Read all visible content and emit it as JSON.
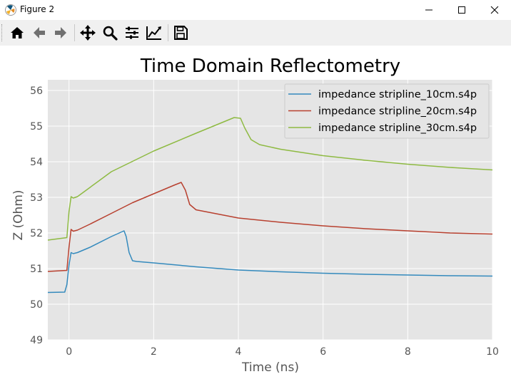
{
  "window": {
    "title": "Figure 2"
  },
  "toolbar": {
    "tools": [
      "home-icon",
      "back-arrow-icon",
      "forward-arrow-icon",
      "pan-icon",
      "zoom-icon",
      "subplots-icon",
      "axes-edit-icon",
      "save-icon"
    ]
  },
  "colors": {
    "axes_bg": "#e5e5e5",
    "grid": "#ffffff",
    "series_1": "#348abd",
    "series_2": "#b8402f",
    "series_3": "#8eba42"
  },
  "chart_data": {
    "type": "line",
    "title": "Time Domain Reflectometry",
    "xlabel": "Time (ns)",
    "ylabel": "Z (Ohm)",
    "xlim": [
      -0.5,
      10
    ],
    "ylim": [
      49,
      56.3
    ],
    "xticks": [
      0,
      2,
      4,
      6,
      8,
      10
    ],
    "yticks": [
      49,
      50,
      51,
      52,
      53,
      54,
      55,
      56
    ],
    "grid": true,
    "legend": "top-right",
    "series": [
      {
        "name": "impedance stripline_10cm.s4p",
        "color": "#348abd",
        "x": [
          -0.5,
          -0.1,
          -0.05,
          0.0,
          0.05,
          0.1,
          0.2,
          0.5,
          1.0,
          1.3,
          1.35,
          1.42,
          1.5,
          1.6,
          2.0,
          3.0,
          4.0,
          5.0,
          6.0,
          7.0,
          8.0,
          9.0,
          10.0
        ],
        "y": [
          50.33,
          50.34,
          50.55,
          51.1,
          51.45,
          51.42,
          51.45,
          51.6,
          51.9,
          52.06,
          51.9,
          51.45,
          51.22,
          51.2,
          51.16,
          51.05,
          50.96,
          50.91,
          50.87,
          50.84,
          50.82,
          50.8,
          50.79
        ]
      },
      {
        "name": "impedance stripline_20cm.s4p",
        "color": "#b8402f",
        "x": [
          -0.5,
          -0.05,
          0.0,
          0.05,
          0.1,
          0.2,
          0.5,
          1.0,
          1.5,
          2.0,
          2.5,
          2.65,
          2.75,
          2.85,
          3.0,
          4.0,
          5.0,
          6.0,
          7.0,
          8.0,
          9.0,
          10.0
        ],
        "y": [
          50.92,
          50.95,
          51.6,
          52.1,
          52.05,
          52.08,
          52.25,
          52.55,
          52.85,
          53.1,
          53.35,
          53.42,
          53.2,
          52.8,
          52.65,
          52.42,
          52.3,
          52.2,
          52.12,
          52.06,
          52.0,
          51.97
        ]
      },
      {
        "name": "impedance stripline_30cm.s4p",
        "color": "#8eba42",
        "x": [
          -0.5,
          -0.05,
          0.0,
          0.05,
          0.1,
          0.2,
          1.0,
          2.0,
          3.0,
          3.9,
          4.05,
          4.15,
          4.3,
          4.5,
          5.0,
          6.0,
          7.0,
          8.0,
          9.0,
          10.0
        ],
        "y": [
          51.8,
          51.87,
          52.6,
          53.02,
          52.98,
          53.02,
          53.72,
          54.3,
          54.8,
          55.24,
          55.22,
          54.95,
          54.62,
          54.48,
          54.35,
          54.17,
          54.04,
          53.93,
          53.84,
          53.77
        ]
      }
    ]
  }
}
